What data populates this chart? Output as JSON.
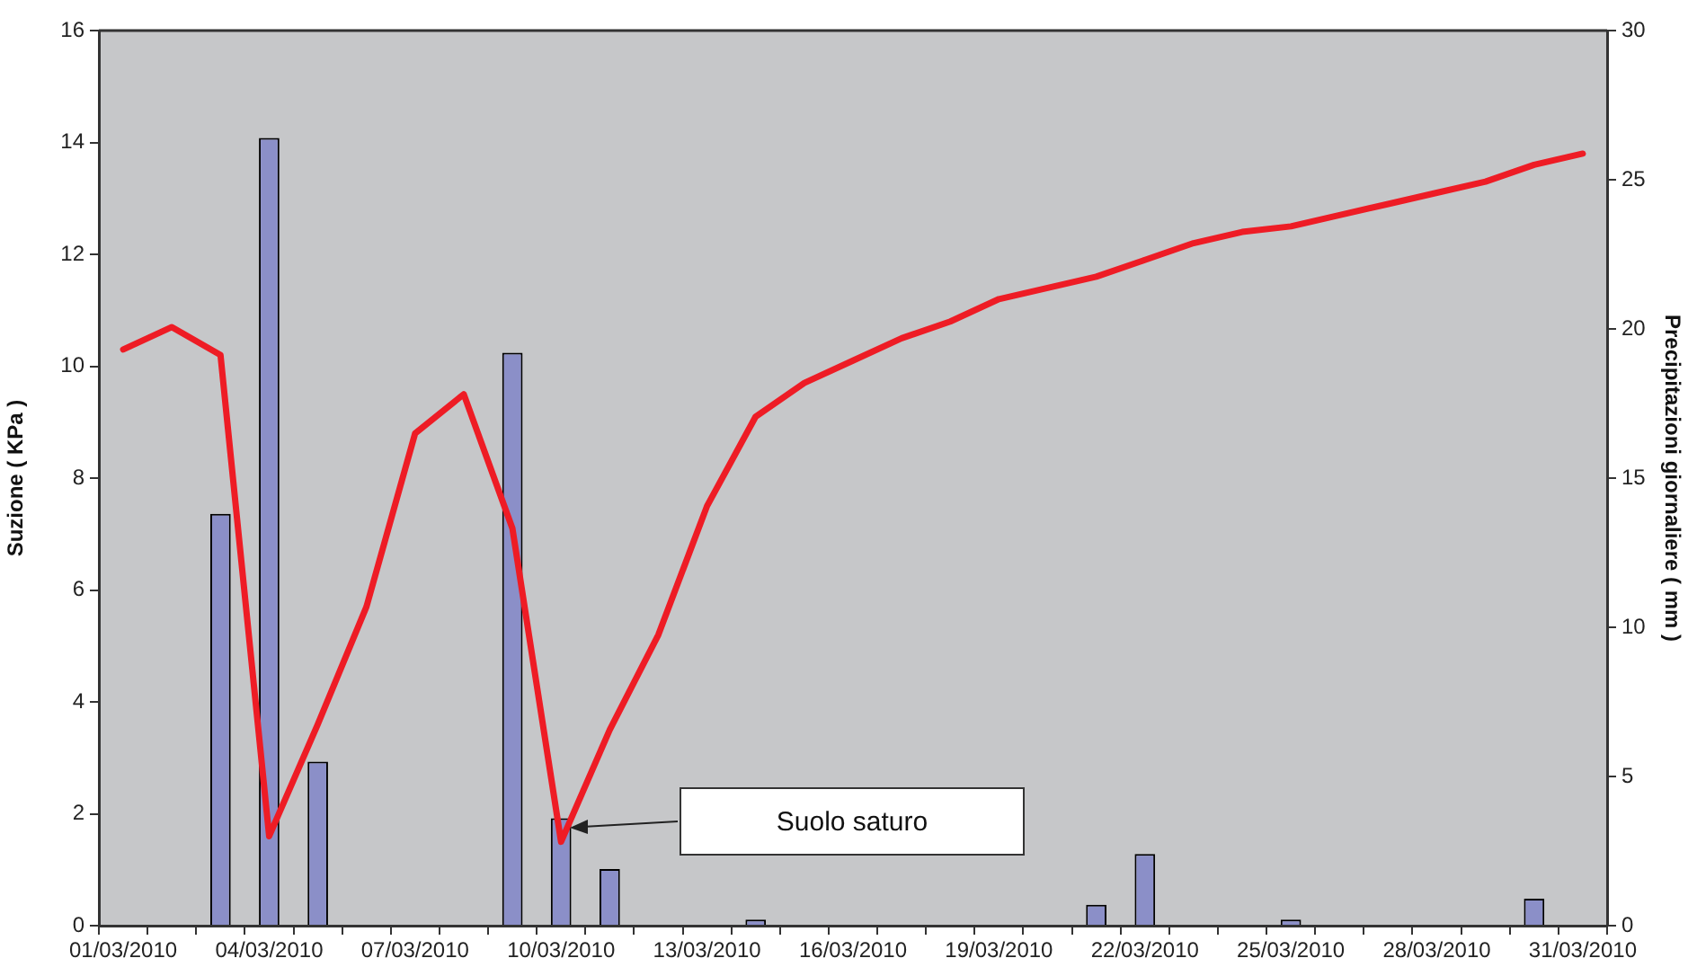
{
  "chart_data": {
    "type": "bar",
    "xlabel": null,
    "ylabel": "Suzione ( KPa )",
    "y2label": "Precipitazioni giornaliere ( mm )",
    "categories": [
      "01/03/2010",
      null,
      null,
      "04/03/2010",
      null,
      null,
      "07/03/2010",
      null,
      null,
      "10/03/2010",
      null,
      null,
      "13/03/2010",
      null,
      null,
      "16/03/2010",
      null,
      null,
      "19/03/2010",
      null,
      null,
      "22/03/2010",
      null,
      null,
      "25/03/2010",
      null,
      null,
      "28/03/2010",
      null,
      null,
      "31/03/2010"
    ],
    "series": [
      {
        "axis": "y2",
        "color": "#8b8fc8",
        "values": [
          0,
          0,
          13.8,
          26.4,
          5.5,
          0,
          0,
          0,
          19.2,
          3.6,
          1.9,
          0,
          0,
          0.2,
          0,
          0,
          0,
          0,
          0,
          0,
          0.7,
          2.4,
          0,
          0,
          0.2,
          0,
          0,
          0,
          0,
          0.9,
          0
        ]
      },
      {
        "type": "line",
        "axis": "y",
        "color": "#ee1c25",
        "values": [
          10.3,
          10.7,
          10.2,
          1.6,
          3.6,
          5.7,
          8.8,
          9.5,
          7.1,
          1.5,
          3.5,
          5.2,
          7.5,
          9.1,
          9.7,
          10.1,
          10.5,
          10.8,
          11.2,
          11.4,
          11.6,
          11.9,
          12.2,
          12.4,
          12.5,
          12.7,
          12.9,
          13.1,
          13.3,
          13.6,
          13.8
        ]
      }
    ],
    "ylim": [
      0,
      16
    ],
    "yticks": [
      0,
      2,
      4,
      6,
      8,
      10,
      12,
      14,
      16
    ],
    "y2lim": [
      0,
      30
    ],
    "y2ticks": [
      0,
      5,
      10,
      15,
      20,
      25,
      30
    ],
    "annotations": [
      "Suolo saturo"
    ],
    "grid": false,
    "legend": false
  }
}
